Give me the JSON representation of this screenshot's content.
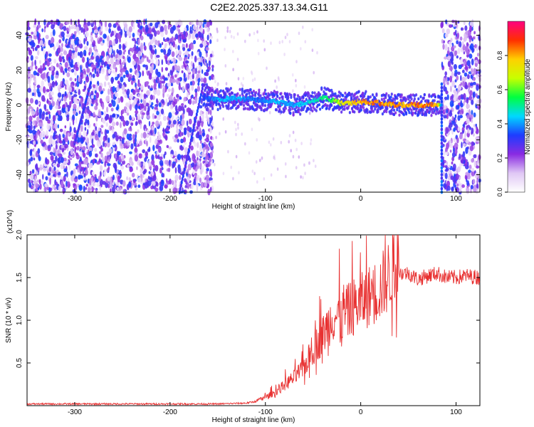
{
  "title": "C2E2.2025.337.13.34.G11",
  "chart_data": [
    {
      "type": "heatmap",
      "name": "spectrogram",
      "xlabel": "Height of straight line (km)",
      "ylabel": "Frequency (Hz)",
      "xlim": [
        -350,
        125
      ],
      "ylim": [
        -50,
        48
      ],
      "xticks": [
        -300,
        -200,
        -100,
        0,
        100
      ],
      "xtick_labels": [
        "-300",
        "-200",
        "-100",
        "0",
        "100"
      ],
      "yticks": [
        -40,
        -20,
        0,
        20,
        40
      ],
      "ytick_labels": [
        "-40",
        "-20",
        "0",
        "20",
        "40"
      ],
      "colorbar": {
        "label": "Normalized spectral amplitude",
        "range": [
          0,
          1
        ],
        "ticks": [
          0.0,
          0.2,
          0.4,
          0.6,
          0.8
        ],
        "tick_labels": [
          "0.0",
          "0.2",
          "0.4",
          "0.6",
          "0.8"
        ],
        "colormap": [
          "#ffffff",
          "#e0c8f5",
          "#8a2be2",
          "#1e3cff",
          "#00d8ff",
          "#00ff40",
          "#c8ff00",
          "#ffd000",
          "#ff3000",
          "#ff0080"
        ]
      },
      "noise_regions": [
        {
          "x": [
            -350,
            -155
          ],
          "amplitude": 0.35
        },
        {
          "x": [
            85,
            125
          ],
          "amplitude": 0.35
        }
      ],
      "ridge": {
        "x": [
          -165,
          -150,
          -130,
          -110,
          -90,
          -70,
          -50,
          -40,
          -30,
          -20,
          -10,
          0,
          20,
          40,
          60,
          80,
          85
        ],
        "freq": [
          5,
          3,
          4,
          3,
          2,
          0,
          2,
          4,
          3,
          1,
          1,
          2,
          1,
          0,
          0,
          0,
          0
        ],
        "amplitude": [
          0.35,
          0.45,
          0.45,
          0.4,
          0.45,
          0.45,
          0.5,
          0.55,
          0.6,
          0.75,
          0.8,
          0.85,
          0.88,
          0.9,
          0.9,
          0.9,
          0.5
        ]
      },
      "streaks": [
        {
          "x": [
            -300,
            -283
          ],
          "freq": [
            -22,
            13
          ]
        },
        {
          "x": [
            -190,
            -165
          ],
          "freq": [
            -50,
            12
          ]
        }
      ],
      "spikes": [
        {
          "x": 85,
          "freq": [
            -50,
            12
          ]
        }
      ]
    },
    {
      "type": "line",
      "name": "snr",
      "xlabel": "Height of straight line (km)",
      "ylabel": "SNR (10 * v/v)",
      "scale_label": "(x10^4)",
      "xlim": [
        -350,
        125
      ],
      "ylim": [
        0,
        2.0
      ],
      "xticks": [
        -300,
        -200,
        -100,
        0,
        100
      ],
      "xtick_labels": [
        "-300",
        "-200",
        "-100",
        "0",
        "100"
      ],
      "yticks": [
        0.5,
        1.0,
        1.5,
        2.0
      ],
      "ytick_labels": [
        "0.5",
        "1.0",
        "1.5",
        "2.0"
      ],
      "color": "#e83030",
      "series": [
        {
          "name": "SNR",
          "x": [
            -350,
            -300,
            -250,
            -200,
            -150,
            -120,
            -110,
            -100,
            -90,
            -80,
            -70,
            -60,
            -50,
            -40,
            -30,
            -20,
            -10,
            0,
            10,
            20,
            30,
            40,
            50,
            60,
            70,
            80,
            90,
            100,
            110,
            125
          ],
          "values": [
            0.02,
            0.02,
            0.02,
            0.02,
            0.02,
            0.03,
            0.05,
            0.09,
            0.14,
            0.22,
            0.3,
            0.4,
            0.6,
            0.75,
            0.95,
            0.95,
            1.05,
            1.1,
            1.18,
            1.25,
            1.4,
            1.55,
            1.55,
            1.48,
            1.52,
            1.55,
            1.5,
            1.5,
            1.52,
            1.5
          ]
        }
      ]
    }
  ]
}
